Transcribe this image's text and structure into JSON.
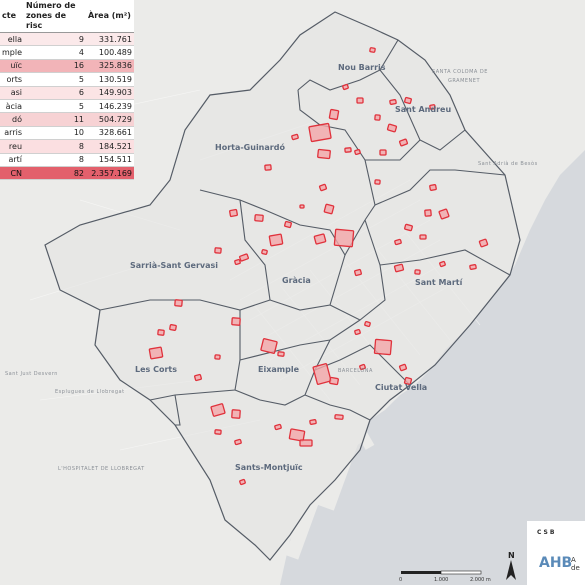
{
  "table": {
    "header": {
      "district": "cte",
      "zones": "Número de zones de risc",
      "area": "Àrea (m²)"
    },
    "rows": [
      {
        "district": "ella",
        "zones": "9",
        "area": "331.761",
        "shade": "#fbe9ea"
      },
      {
        "district": "mple",
        "zones": "4",
        "area": "100.489",
        "shade": "#ffffff"
      },
      {
        "district": "uïc",
        "zones": "16",
        "area": "325.836",
        "shade": "#f2b4b8"
      },
      {
        "district": "orts",
        "zones": "5",
        "area": "130.519",
        "shade": "#ffffff"
      },
      {
        "district": "asi",
        "zones": "6",
        "area": "149.903",
        "shade": "#fbe4e5"
      },
      {
        "district": "àcia",
        "zones": "5",
        "area": "146.239",
        "shade": "#ffffff"
      },
      {
        "district": "dó",
        "zones": "11",
        "area": "504.729",
        "shade": "#f7d2d4"
      },
      {
        "district": "arris",
        "zones": "10",
        "area": "328.661",
        "shade": "#ffffff"
      },
      {
        "district": "reu",
        "zones": "8",
        "area": "184.521",
        "shade": "#fbdfe1"
      },
      {
        "district": "artí",
        "zones": "8",
        "area": "154.511",
        "shade": "#ffffff"
      }
    ],
    "total": {
      "district": "CN",
      "zones": "82",
      "area": "2.357.169"
    }
  },
  "districts": [
    {
      "name": "Nou Barris"
    },
    {
      "name": "Sant Andreu"
    },
    {
      "name": "Horta-Guinardó"
    },
    {
      "name": "Sarrià-Sant Gervasi"
    },
    {
      "name": "Gràcia"
    },
    {
      "name": "Sant Martí"
    },
    {
      "name": "Les Corts"
    },
    {
      "name": "Eixample"
    },
    {
      "name": "Ciutat Vella"
    },
    {
      "name": "Sants-Montjuïc"
    }
  ],
  "places": [
    {
      "name": "SANTA COLOMA DE"
    },
    {
      "name": "GRAMENET"
    },
    {
      "name": "BARCELONA"
    },
    {
      "name": "L'HOSPITALET DE LLOBREGAT"
    },
    {
      "name": "Esplugues de Llobregat"
    },
    {
      "name": "Sant Just Desvern"
    },
    {
      "name": "Sant Adrià de Besòs"
    }
  ],
  "scale": {
    "ticks": [
      "0",
      "1.000",
      "2.000 m"
    ]
  },
  "north_label": "N",
  "logo": {
    "abbr": "CSB",
    "mark": "AHB",
    "line1": "A",
    "line2": "de"
  },
  "colors": {
    "risk_zone": "#e0323c",
    "risk_zone_fill": "#f4a6a9",
    "boundary": "#555c66",
    "land": "#e8e8e6",
    "sea": "#d4d7db",
    "total_row": "#e3606c"
  },
  "icons": {
    "north": "north-arrow-icon"
  }
}
